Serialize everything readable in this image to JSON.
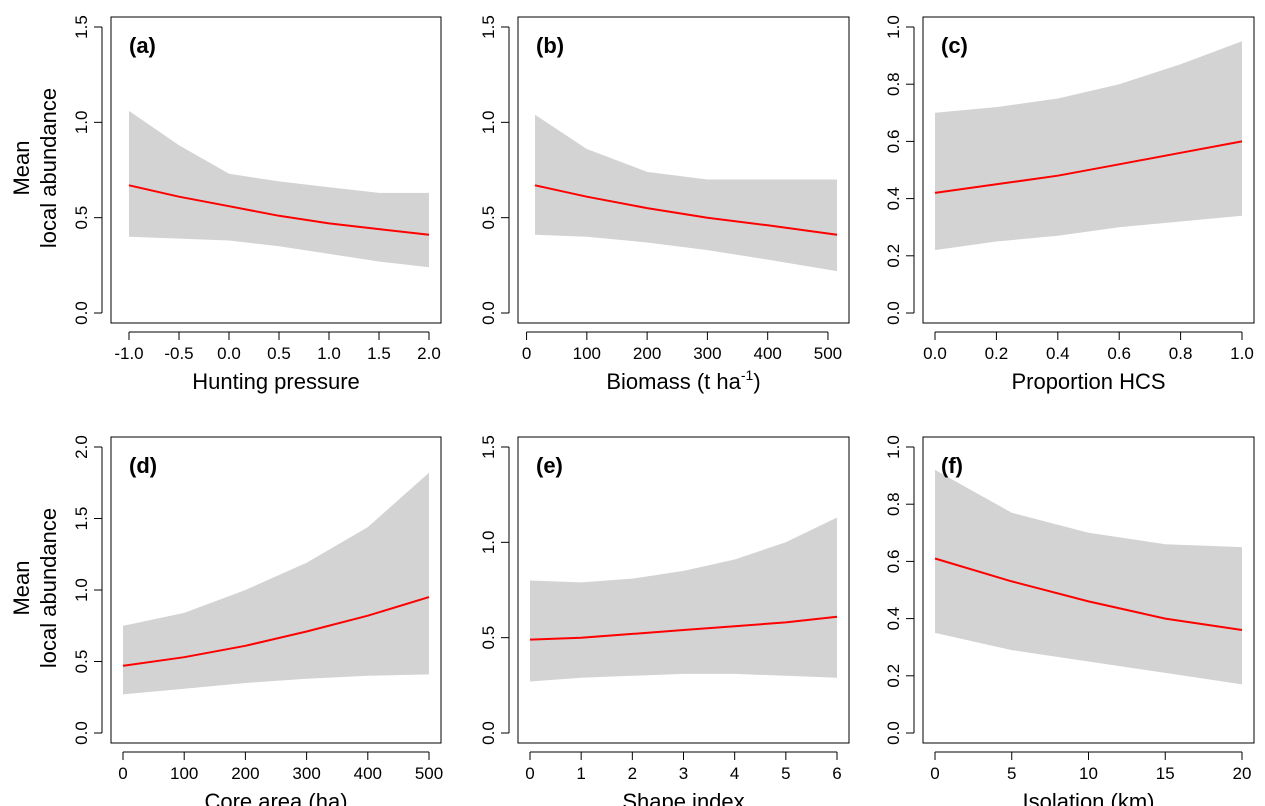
{
  "figure": {
    "ylabel_line1": "Mean",
    "ylabel_line2": "local abundance"
  },
  "colors": {
    "band": "#d3d3d3",
    "line": "#ff0000",
    "axis": "#000000"
  },
  "chart_data": [
    {
      "type": "line",
      "panel": "(a)",
      "xlabel": "Hunting pressure",
      "xlim": [
        -1.0,
        2.0
      ],
      "ylim": [
        0.0,
        1.5
      ],
      "xticks": [
        "-1.0",
        "-0.5",
        "0.0",
        "0.5",
        "1.0",
        "1.5",
        "2.0"
      ],
      "yticks": [
        "0.0",
        "0.5",
        "1.0",
        "1.5"
      ],
      "x": [
        -1.0,
        -0.5,
        0.0,
        0.5,
        1.0,
        1.5,
        2.0
      ],
      "mean": [
        0.67,
        0.61,
        0.56,
        0.51,
        0.47,
        0.44,
        0.41
      ],
      "lower": [
        0.4,
        0.39,
        0.38,
        0.35,
        0.31,
        0.27,
        0.24
      ],
      "upper": [
        1.06,
        0.88,
        0.73,
        0.69,
        0.66,
        0.63,
        0.63
      ]
    },
    {
      "type": "line",
      "panel": "(b)",
      "xlabel": "Biomass (t ha",
      "xlabel_sup": "-1",
      "xlabel_end": ")",
      "xlim": [
        14,
        515
      ],
      "ylim": [
        0.0,
        1.5
      ],
      "xticks": [
        "0",
        "100",
        "200",
        "300",
        "400",
        "500"
      ],
      "yticks": [
        "0.0",
        "0.5",
        "1.0",
        "1.5"
      ],
      "x": [
        14,
        100,
        200,
        300,
        400,
        515
      ],
      "mean": [
        0.67,
        0.61,
        0.55,
        0.5,
        0.46,
        0.41
      ],
      "lower": [
        0.41,
        0.4,
        0.37,
        0.33,
        0.28,
        0.22
      ],
      "upper": [
        1.04,
        0.86,
        0.74,
        0.7,
        0.7,
        0.7
      ]
    },
    {
      "type": "line",
      "panel": "(c)",
      "xlabel": "Proportion HCS",
      "xlim": [
        0.0,
        1.0
      ],
      "ylim": [
        0.0,
        1.0
      ],
      "xticks": [
        "0.0",
        "0.2",
        "0.4",
        "0.6",
        "0.8",
        "1.0"
      ],
      "yticks": [
        "0.0",
        "0.2",
        "0.4",
        "0.6",
        "0.8",
        "1.0"
      ],
      "x": [
        0.0,
        0.2,
        0.4,
        0.6,
        0.8,
        1.0
      ],
      "mean": [
        0.42,
        0.45,
        0.48,
        0.52,
        0.56,
        0.6
      ],
      "lower": [
        0.22,
        0.25,
        0.27,
        0.3,
        0.32,
        0.34
      ],
      "upper": [
        0.7,
        0.72,
        0.75,
        0.8,
        0.87,
        0.95
      ]
    },
    {
      "type": "line",
      "panel": "(d)",
      "xlabel": "Core area (ha)",
      "xlim": [
        0,
        500
      ],
      "ylim": [
        0.0,
        2.0
      ],
      "xticks": [
        "0",
        "100",
        "200",
        "300",
        "400",
        "500"
      ],
      "yticks": [
        "0.0",
        "0.5",
        "1.0",
        "1.5",
        "2.0"
      ],
      "x": [
        0,
        100,
        200,
        300,
        400,
        500
      ],
      "mean": [
        0.47,
        0.53,
        0.61,
        0.71,
        0.82,
        0.95
      ],
      "lower": [
        0.27,
        0.31,
        0.35,
        0.38,
        0.4,
        0.41
      ],
      "upper": [
        0.75,
        0.84,
        1.0,
        1.19,
        1.44,
        1.82
      ]
    },
    {
      "type": "line",
      "panel": "(e)",
      "xlabel": "Shape index",
      "xlim": [
        0,
        6
      ],
      "ylim": [
        0.0,
        1.5
      ],
      "xticks": [
        "0",
        "1",
        "2",
        "3",
        "4",
        "5",
        "6"
      ],
      "yticks": [
        "0.0",
        "0.5",
        "1.0",
        "1.5"
      ],
      "x": [
        0,
        1,
        2,
        3,
        4,
        5,
        6
      ],
      "mean": [
        0.49,
        0.5,
        0.52,
        0.54,
        0.56,
        0.58,
        0.61
      ],
      "lower": [
        0.27,
        0.29,
        0.3,
        0.31,
        0.31,
        0.3,
        0.29
      ],
      "upper": [
        0.8,
        0.79,
        0.81,
        0.85,
        0.91,
        1.0,
        1.13
      ]
    },
    {
      "type": "line",
      "panel": "(f)",
      "xlabel": "Isolation (km)",
      "xlim": [
        0,
        20
      ],
      "ylim": [
        0.0,
        1.0
      ],
      "xticks": [
        "0",
        "5",
        "10",
        "15",
        "20"
      ],
      "yticks": [
        "0.0",
        "0.2",
        "0.4",
        "0.6",
        "0.8",
        "1.0"
      ],
      "x": [
        0,
        5,
        10,
        15,
        20
      ],
      "mean": [
        0.61,
        0.53,
        0.46,
        0.4,
        0.36
      ],
      "lower": [
        0.35,
        0.29,
        0.25,
        0.21,
        0.17
      ],
      "upper": [
        0.92,
        0.77,
        0.7,
        0.66,
        0.65
      ]
    }
  ]
}
